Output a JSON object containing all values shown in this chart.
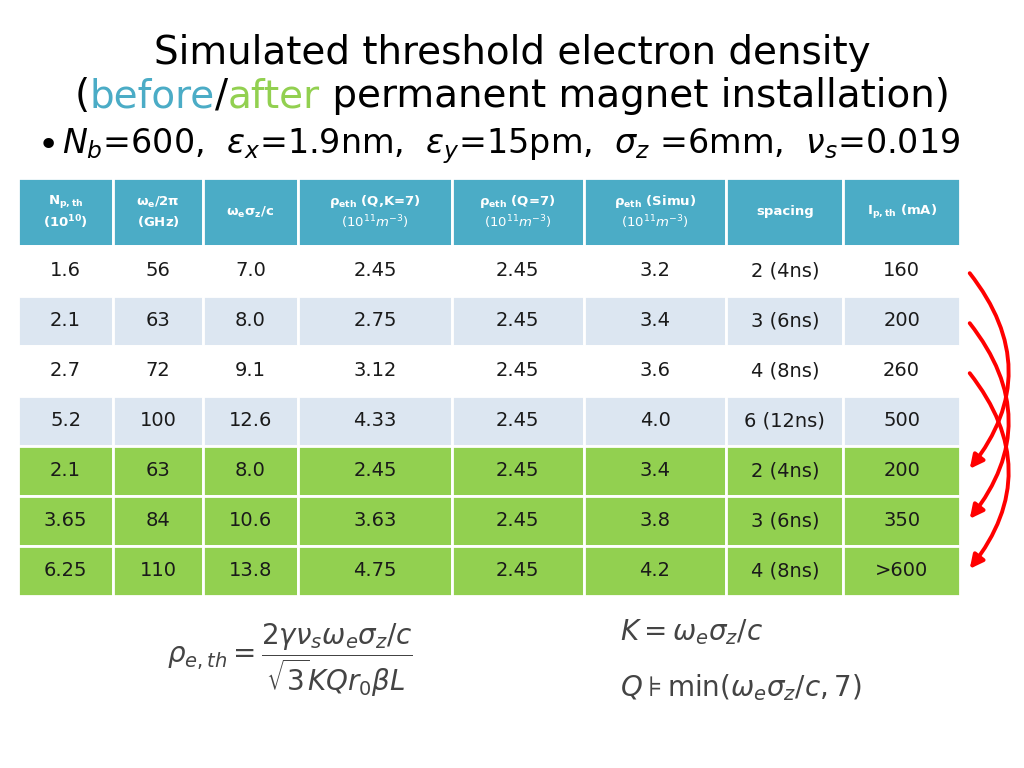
{
  "title_line1": "Simulated threshold electron density",
  "before_color": "#4BACC6",
  "after_color": "#92D050",
  "header_bg": "#4BACC6",
  "header_text": "#FFFFFF",
  "row_bg_white": "#FFFFFF",
  "row_bg_blue_light": "#DCE6F1",
  "row_bg_green": "#92D050",
  "col_headers": [
    "N_{p,th}\n(10^{10})",
    "omega_e/2pi\n(GHz)",
    "omega_e_sigma_z_c",
    "rho_eth_QK7\n(10^{11}m^{-3})",
    "rho_eth_Q7\n(10^{11}m^{-3})",
    "rho_eth_Simu\n(10^{11}m^{-3})",
    "spacing",
    "I_{p,th} (mA)"
  ],
  "rows": [
    [
      "1.6",
      "56",
      "7.0",
      "2.45",
      "2.45",
      "3.2",
      "2 (4ns)",
      "160",
      "white"
    ],
    [
      "2.1",
      "63",
      "8.0",
      "2.75",
      "2.45",
      "3.4",
      "3 (6ns)",
      "200",
      "light"
    ],
    [
      "2.7",
      "72",
      "9.1",
      "3.12",
      "2.45",
      "3.6",
      "4 (8ns)",
      "260",
      "white"
    ],
    [
      "5.2",
      "100",
      "12.6",
      "4.33",
      "2.45",
      "4.0",
      "6 (12ns)",
      "500",
      "light"
    ],
    [
      "2.1",
      "63",
      "8.0",
      "2.45",
      "2.45",
      "3.4",
      "2 (4ns)",
      "200",
      "green"
    ],
    [
      "3.65",
      "84",
      "10.6",
      "3.63",
      "2.45",
      "3.8",
      "3 (6ns)",
      "350",
      "green"
    ],
    [
      "6.25",
      "110",
      "13.8",
      "4.75",
      "2.45",
      "4.2",
      "4 (8ns)",
      ">600",
      "green"
    ]
  ]
}
